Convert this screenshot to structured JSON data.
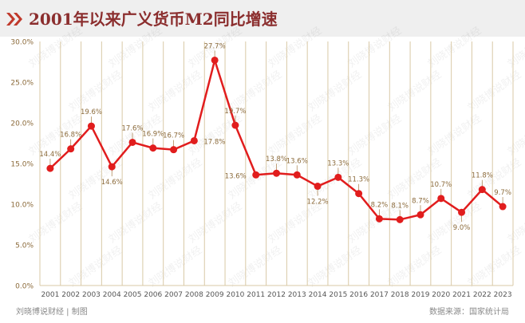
{
  "title": "2001年以来广义货币M2同比增速",
  "colors": {
    "accent": "#c0392b",
    "line": "#e11d1d",
    "grid": "#d9c9a6",
    "label": "#8b6a3a",
    "title_band": "#efefef"
  },
  "watermark": "刘晓博说财经",
  "footer": {
    "source_left": "刘晓博说财经 | 制图",
    "source_right": "数据来源：国家统计局"
  },
  "chart_data": {
    "type": "line",
    "title": "2001年以来广义货币M2同比增速",
    "xlabel": "",
    "ylabel": "",
    "ylim": [
      0,
      30
    ],
    "yticks": [
      "0.0%",
      "5.0%",
      "10.0%",
      "15.0%",
      "20.0%",
      "25.0%",
      "30.0%"
    ],
    "grid": "vertical",
    "x": [
      "2001",
      "2002",
      "2003",
      "2004",
      "2005",
      "2006",
      "2007",
      "2008",
      "2009",
      "2010",
      "2011",
      "2012",
      "2013",
      "2014",
      "2015",
      "2016",
      "2017",
      "2018",
      "2019",
      "2020",
      "2021",
      "2022",
      "2023"
    ],
    "values": [
      14.4,
      16.8,
      19.6,
      14.6,
      17.6,
      16.9,
      16.7,
      17.8,
      27.7,
      19.7,
      13.6,
      13.8,
      13.6,
      12.2,
      13.3,
      11.3,
      8.2,
      8.1,
      8.7,
      10.7,
      9.0,
      11.8,
      9.7
    ],
    "labels": [
      "14.4%",
      "16.8%",
      "19.6%",
      "14.6%",
      "17.6%",
      "16.9%",
      "16.7%",
      "17.8%",
      "27.7%",
      "19.7%",
      "13.6%",
      "13.8%",
      "13.6%",
      "12.2%",
      "13.3%",
      "11.3%",
      "8.2%",
      "8.1%",
      "8.7%",
      "10.7%",
      "9.0%",
      "11.8%",
      "9.7%"
    ],
    "label_pos": [
      "above",
      "above",
      "above",
      "below",
      "above",
      "above",
      "above",
      "right",
      "above",
      "above",
      "left",
      "above",
      "above",
      "below",
      "above",
      "above",
      "above",
      "above",
      "above",
      "above",
      "below",
      "above",
      "above"
    ]
  }
}
